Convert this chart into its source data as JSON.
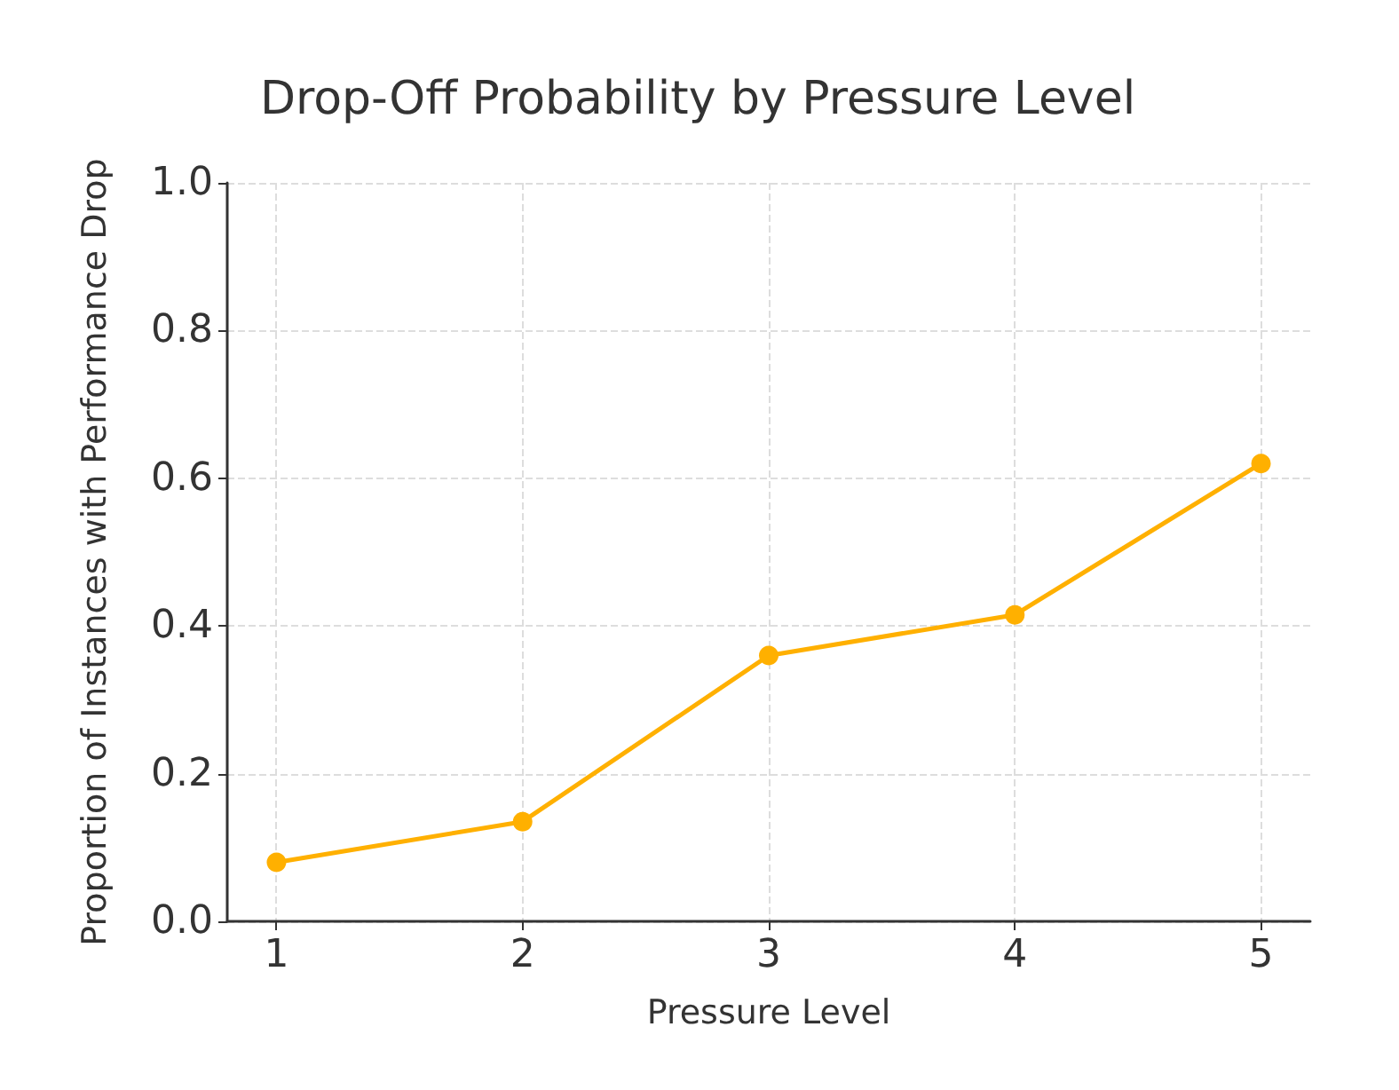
{
  "chart_data": {
    "type": "line",
    "title": "Drop-Off Probability by Pressure Level",
    "xlabel": "Pressure Level",
    "ylabel": "Proportion of Instances with Performance Drop",
    "x": [
      1,
      2,
      3,
      4,
      5
    ],
    "series": [
      {
        "color": "#ffb000",
        "values": [
          0.08,
          0.135,
          0.36,
          0.415,
          0.62
        ]
      }
    ],
    "xlim": [
      0.8,
      5.2
    ],
    "xticks": [
      1,
      2,
      3,
      4,
      5
    ],
    "ylim": [
      0,
      1
    ],
    "yticks": [
      {
        "value": 0,
        "label": "0.0"
      },
      {
        "value": 0.2,
        "label": "0.2"
      },
      {
        "value": 0.4,
        "label": "0.4"
      },
      {
        "value": 0.6,
        "label": "0.6"
      },
      {
        "value": 0.8,
        "label": "0.8"
      },
      {
        "value": 1,
        "label": "1.0"
      }
    ],
    "grid": true,
    "marker": "circle",
    "line_style": "solid"
  }
}
